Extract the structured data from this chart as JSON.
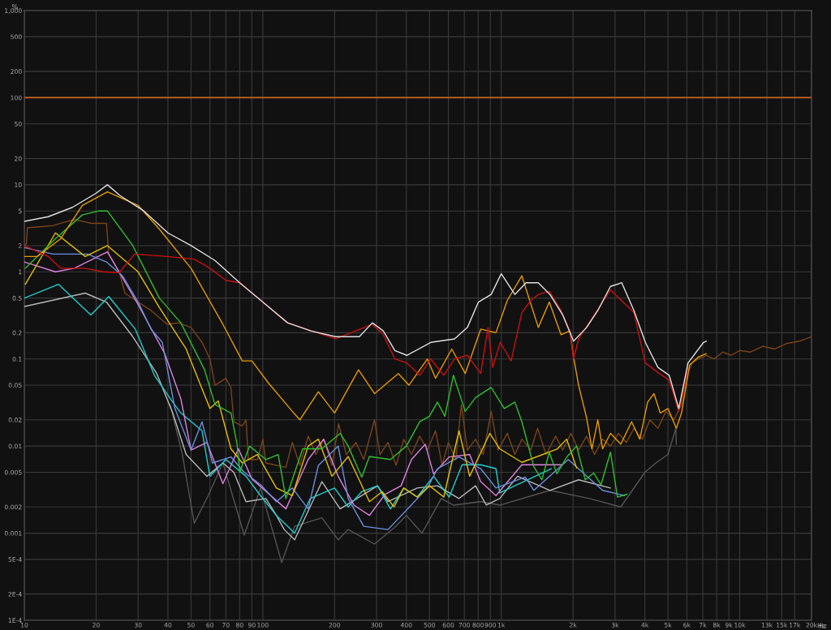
{
  "chart_data": {
    "type": "line",
    "ylabel": "%",
    "log": "xy",
    "grid": true,
    "xlim": [
      10,
      20000
    ],
    "ylim": [
      0.0001,
      1000
    ],
    "xticks": [
      10,
      20,
      30,
      40,
      50,
      60,
      70,
      80,
      90,
      100,
      200,
      300,
      400,
      500,
      600,
      700,
      800,
      900,
      {
        "value": 1000,
        "label": "1k"
      },
      {
        "value": 2000,
        "label": "2k"
      },
      {
        "value": 3000,
        "label": "3k"
      },
      {
        "value": 4000,
        "label": "4k"
      },
      {
        "value": 5000,
        "label": "5k"
      },
      {
        "value": 6000,
        "label": "6k"
      },
      {
        "value": 7000,
        "label": "7k"
      },
      {
        "value": 8000,
        "label": "8k"
      },
      {
        "value": 9000,
        "label": "9k"
      },
      {
        "value": 10000,
        "label": "10k"
      },
      {
        "value": 13000,
        "label": "13k"
      },
      {
        "value": 15000,
        "label": "15k"
      },
      {
        "value": 17000,
        "label": "17k"
      },
      {
        "value": 20000,
        "label": "20k"
      }
    ],
    "xlabel": "Hz",
    "yticks": [
      {
        "value": 1000,
        "label": "1,000"
      },
      500,
      200,
      100,
      50,
      20,
      10,
      5,
      2,
      1,
      0.5,
      0.2,
      0.1,
      0.05,
      0.02,
      0.01,
      0.005,
      0.002,
      0.001,
      {
        "value": 0.0005,
        "label": "5E-4"
      },
      {
        "value": 0.0002,
        "label": "2E-4"
      },
      {
        "value": 0.0001,
        "label": "1E-4"
      }
    ],
    "ref_lines": [
      {
        "axis": "y",
        "value": 100,
        "color": "#c8641e"
      }
    ],
    "series": [
      {
        "color": "#7a4418",
        "x": [
          10,
          10.2,
          10.3,
          13.2,
          16.2,
          19.1,
          22.1,
          22.6,
          25,
          26.4,
          30,
          34,
          39.7,
          44.2,
          50,
          55.6,
          60,
          63,
          70,
          73.5,
          75.6,
          82,
          85,
          87,
          95,
          100,
          103,
          125,
          133,
          143,
          155,
          167,
          180,
          195,
          208,
          224,
          246,
          265,
          294,
          310,
          335,
          362,
          390,
          420,
          455,
          490,
          530,
          565,
          600,
          645,
          680,
          721,
          780,
          840,
          907,
          970,
          1060,
          1140,
          1220,
          1330,
          1420,
          1540,
          1690,
          1810,
          1960,
          2110,
          2280,
          2460,
          2660,
          2870,
          3100,
          3350,
          3600,
          3900,
          4200,
          4540,
          4900,
          5300,
          5700,
          5950,
          6300,
          6700,
          7240,
          7800,
          8500,
          9200,
          10000,
          11100,
          12500,
          14000,
          15700,
          17800,
          20000
        ],
        "values": [
          2.0,
          2.1,
          3.2,
          3.4,
          4.0,
          3.6,
          3.6,
          1.6,
          1.0,
          0.57,
          0.45,
          0.36,
          0.25,
          0.26,
          0.23,
          0.155,
          0.1,
          0.05,
          0.06,
          0.047,
          0.019,
          0.017,
          0.02,
          0.007,
          0.007,
          0.012,
          0.0064,
          0.0057,
          0.011,
          0.006,
          0.013,
          0.008,
          0.012,
          0.006,
          0.018,
          0.008,
          0.011,
          0.007,
          0.02,
          0.008,
          0.011,
          0.006,
          0.012,
          0.008,
          0.013,
          0.009,
          0.015,
          0.006,
          0.011,
          0.007,
          0.03,
          0.009,
          0.012,
          0.008,
          0.025,
          0.009,
          0.014,
          0.008,
          0.012,
          0.009,
          0.016,
          0.008,
          0.013,
          0.009,
          0.014,
          0.009,
          0.013,
          0.008,
          0.012,
          0.01,
          0.014,
          0.011,
          0.016,
          0.012,
          0.02,
          0.016,
          0.025,
          0.02,
          0.03,
          0.06,
          0.09,
          0.1,
          0.11,
          0.1,
          0.12,
          0.11,
          0.125,
          0.12,
          0.14,
          0.13,
          0.15,
          0.16,
          0.18
        ]
      },
      {
        "color": "#555555",
        "x": [
          40.9,
          46,
          51.6,
          59,
          68,
          83.6,
          97.8,
          120,
          136,
          177,
          207,
          228,
          294,
          362,
          400,
          465,
          560,
          630,
          820,
          990,
          1600,
          2350,
          3170,
          4000,
          4450,
          5000,
          5400,
          5420
        ],
        "values": [
          0.03,
          0.008,
          0.0013,
          0.0027,
          0.0064,
          0.00095,
          0.0033,
          0.00046,
          0.0012,
          0.0015,
          0.00084,
          0.0011,
          0.00075,
          0.0012,
          0.0016,
          0.001,
          0.0025,
          0.0021,
          0.0023,
          0.0021,
          0.0031,
          0.0025,
          0.002,
          0.005,
          0.0064,
          0.008,
          0.016,
          0.0105
        ]
      },
      {
        "color": "#b8b8b8",
        "x": [
          10,
          18,
          22.1,
          28.5,
          35.9,
          41.9,
          47.7,
          58.3,
          68,
          75.6,
          85,
          103,
          114,
          123,
          136,
          177,
          211,
          303,
          335,
          444,
          540,
          665,
          780,
          865,
          985,
          1170,
          1600,
          2110,
          2870
        ],
        "values": [
          0.4,
          0.57,
          0.45,
          0.18,
          0.068,
          0.024,
          0.008,
          0.0045,
          0.0064,
          0.005,
          0.0023,
          0.0025,
          0.0016,
          0.0011,
          0.00084,
          0.0039,
          0.0019,
          0.0035,
          0.0023,
          0.0033,
          0.0035,
          0.0025,
          0.0035,
          0.0021,
          0.0025,
          0.0045,
          0.0031,
          0.0041,
          0.0033
        ]
      },
      {
        "color": "#20d0d0",
        "x": [
          10,
          13.9,
          19,
          22.6,
          29.2,
          35.1,
          40.9,
          45.3,
          55.6,
          60,
          70,
          85,
          97.8,
          114,
          136,
          158,
          200,
          228,
          260,
          303,
          343,
          390,
          444,
          520,
          605,
          685,
          820,
          950,
          985,
          1620
        ],
        "values": [
          0.5,
          0.72,
          0.32,
          0.52,
          0.22,
          0.065,
          0.035,
          0.024,
          0.015,
          0.0045,
          0.007,
          0.0045,
          0.0027,
          0.0016,
          0.001,
          0.0025,
          0.0033,
          0.002,
          0.003,
          0.0035,
          0.0019,
          0.0033,
          0.0026,
          0.0045,
          0.0026,
          0.0061,
          0.0061,
          0.0055,
          0.0029,
          0.0055
        ]
      },
      {
        "color": "#e080e0",
        "x": [
          10,
          13.5,
          16.2,
          22.3,
          30,
          38.8,
          45.3,
          50,
          58.3,
          68,
          79,
          90,
          125,
          155,
          180,
          207,
          241,
          280,
          326,
          380,
          420,
          480,
          520,
          605,
          737,
          820,
          950,
          1220,
          1810
        ],
        "values": [
          1.3,
          1.0,
          1.1,
          1.7,
          0.42,
          0.115,
          0.035,
          0.009,
          0.011,
          0.0037,
          0.0093,
          0.0042,
          0.0019,
          0.007,
          0.012,
          0.0045,
          0.0021,
          0.0016,
          0.0028,
          0.0035,
          0.007,
          0.0105,
          0.0048,
          0.0075,
          0.008,
          0.0039,
          0.0027,
          0.0061,
          0.0061
        ]
      },
      {
        "color": "#6a90e0",
        "x": [
          10,
          13.2,
          18.4,
          22.1,
          25.8,
          30,
          34,
          37.9,
          42.8,
          50,
          55.6,
          61.5,
          73.5,
          83.6,
          97.8,
          114,
          133,
          155,
          171,
          207,
          228,
          265,
          335,
          490,
          540,
          665,
          820,
          950,
          1260,
          1370,
          1910,
          2660,
          3290
        ],
        "values": [
          1.9,
          1.6,
          1.6,
          1.3,
          0.9,
          0.45,
          0.22,
          0.155,
          0.027,
          0.009,
          0.019,
          0.0064,
          0.0075,
          0.005,
          0.0036,
          0.0023,
          0.0033,
          0.0019,
          0.006,
          0.01,
          0.0025,
          0.0012,
          0.0011,
          0.0033,
          0.0055,
          0.0075,
          0.0055,
          0.0033,
          0.0044,
          0.0031,
          0.007,
          0.0031,
          0.0027
        ]
      },
      {
        "color": "#e6c000",
        "x": [
          10.1,
          13.5,
          18,
          22.3,
          30,
          36.8,
          47.7,
          60,
          65,
          73.5,
          82,
          95,
          114,
          133,
          155,
          171,
          195,
          228,
          280,
          317,
          355,
          390,
          444,
          500,
          574,
          665,
          737,
          895,
          985,
          1220,
          1720,
          1880,
          2070
        ],
        "values": [
          0.72,
          2.8,
          1.5,
          2.0,
          1.0,
          0.39,
          0.13,
          0.027,
          0.033,
          0.0093,
          0.0064,
          0.008,
          0.0033,
          0.0027,
          0.01,
          0.012,
          0.0045,
          0.0076,
          0.0023,
          0.003,
          0.002,
          0.0033,
          0.0026,
          0.0035,
          0.0026,
          0.015,
          0.0045,
          0.014,
          0.0093,
          0.0065,
          0.0093,
          0.012,
          0.0056
        ]
      },
      {
        "color": "#2ec02e",
        "x": [
          10.1,
          13.5,
          17.5,
          20.5,
          22.3,
          28.5,
          36.8,
          45.3,
          57,
          63,
          73.5,
          78,
          80,
          88,
          103,
          116,
          125,
          147,
          177,
          211,
          228,
          260,
          280,
          343,
          400,
          455,
          500,
          540,
          580,
          630,
          706,
          780,
          907,
          1030,
          1140,
          1220,
          1370,
          1480,
          1590,
          1710,
          1890,
          2070,
          2250,
          2440,
          2620,
          2870,
          3070,
          3370
        ],
        "values": [
          1.1,
          2.4,
          4.5,
          5.0,
          5.0,
          2.0,
          0.5,
          0.26,
          0.075,
          0.03,
          0.024,
          0.0105,
          0.005,
          0.01,
          0.007,
          0.008,
          0.0025,
          0.0093,
          0.0093,
          0.014,
          0.01,
          0.0044,
          0.0076,
          0.007,
          0.01,
          0.019,
          0.022,
          0.032,
          0.022,
          0.065,
          0.025,
          0.036,
          0.047,
          0.027,
          0.032,
          0.019,
          0.0058,
          0.0041,
          0.0085,
          0.0048,
          0.0076,
          0.01,
          0.0041,
          0.0049,
          0.0036,
          0.0085,
          0.0026,
          0.0028
        ]
      },
      {
        "color": "#e89a00",
        "x": [
          10,
          11.3,
          14.2,
          17.5,
          22.3,
          30,
          36.8,
          50,
          68,
          82,
          90,
          105,
          133,
          143,
          171,
          200,
          252,
          294,
          370,
          410,
          490,
          530,
          620,
          706,
          820,
          950,
          1060,
          1220,
          1430,
          1590,
          1780,
          1940,
          2010,
          2110,
          2280,
          2400,
          2540,
          2660,
          2870,
          3170,
          3520,
          3810,
          4110,
          4370,
          4640,
          5000,
          5420,
          5700,
          6160,
          6700,
          7240
        ],
        "values": [
          1.5,
          1.5,
          2.4,
          5.8,
          8.3,
          5.8,
          3.1,
          1.1,
          0.25,
          0.095,
          0.095,
          0.054,
          0.025,
          0.02,
          0.042,
          0.024,
          0.075,
          0.04,
          0.068,
          0.05,
          0.1,
          0.06,
          0.13,
          0.068,
          0.22,
          0.2,
          0.47,
          0.9,
          0.23,
          0.45,
          0.19,
          0.21,
          0.105,
          0.05,
          0.021,
          0.0093,
          0.02,
          0.0093,
          0.014,
          0.0105,
          0.019,
          0.012,
          0.032,
          0.04,
          0.024,
          0.027,
          0.016,
          0.024,
          0.085,
          0.105,
          0.115
        ]
      },
      {
        "color": "#cc1010",
        "x": [
          10,
          12.6,
          14.2,
          17.9,
          21.4,
          25,
          29,
          39.7,
          51.6,
          60,
          70,
          80,
          100,
          127,
          202,
          288,
          320,
          358,
          402,
          455,
          506,
          574,
          637,
          721,
          820,
          880,
          920,
          990,
          1100,
          1220,
          1330,
          1430,
          1590,
          1780,
          1940,
          2010,
          2110,
          2870,
          3600,
          4020,
          4540,
          5060,
          5550,
          6070
        ],
        "values": [
          2.0,
          1.5,
          1.1,
          1.1,
          1.0,
          0.98,
          1.6,
          1.5,
          1.4,
          1.1,
          0.8,
          0.75,
          0.45,
          0.26,
          0.17,
          0.25,
          0.19,
          0.1,
          0.09,
          0.065,
          0.1,
          0.065,
          0.1,
          0.11,
          0.068,
          0.23,
          0.08,
          0.155,
          0.095,
          0.34,
          0.47,
          0.55,
          0.6,
          0.36,
          0.21,
          0.1,
          0.17,
          0.62,
          0.34,
          0.09,
          0.07,
          0.057,
          0.025,
          0.08
        ]
      },
      {
        "color": "#e0e0e0",
        "x": [
          10,
          12.6,
          15.9,
          20,
          22.3,
          25.2,
          31.7,
          40,
          50,
          63,
          80,
          100,
          127,
          159,
          202,
          254,
          288,
          320,
          358,
          402,
          506,
          637,
          721,
          802,
          907,
          1000,
          1140,
          1270,
          1430,
          1600,
          1810,
          2010,
          2280,
          2540,
          2870,
          3200,
          3600,
          4020,
          4540,
          5060,
          5550,
          6070,
          7050,
          7240
        ],
        "values": [
          3.8,
          4.3,
          5.5,
          8.0,
          10,
          7.5,
          5.0,
          2.8,
          2.0,
          1.35,
          0.75,
          0.45,
          0.26,
          0.21,
          0.18,
          0.18,
          0.26,
          0.21,
          0.125,
          0.11,
          0.155,
          0.17,
          0.23,
          0.45,
          0.55,
          0.95,
          0.55,
          0.75,
          0.75,
          0.55,
          0.32,
          0.16,
          0.23,
          0.36,
          0.68,
          0.75,
          0.36,
          0.155,
          0.08,
          0.065,
          0.027,
          0.09,
          0.155,
          0.16
        ]
      }
    ]
  }
}
